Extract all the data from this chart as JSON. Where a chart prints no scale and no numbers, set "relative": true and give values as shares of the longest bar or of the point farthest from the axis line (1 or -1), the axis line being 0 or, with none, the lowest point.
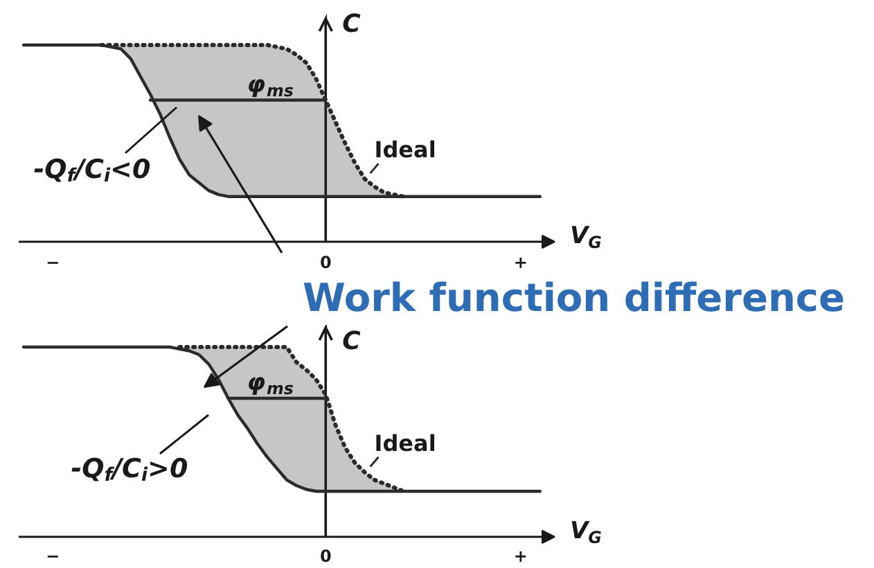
{
  "chart_data": [
    {
      "type": "line",
      "relative": true,
      "xlabel": "V$_{G}$",
      "ylabel": "C",
      "tick_labels": "x",
      "categories": [
        null,
        null,
        null,
        "−",
        null,
        null,
        null,
        null,
        null,
        null,
        null,
        null,
        null,
        null,
        null,
        null,
        null,
        null,
        null,
        null,
        null,
        null,
        null,
        null,
        null,
        null,
        null,
        null,
        null,
        null,
        null,
        "0",
        null,
        null,
        null,
        null,
        null,
        null,
        null,
        null,
        null,
        null,
        null,
        null,
        null,
        null,
        null,
        null,
        null,
        null,
        null,
        "+",
        null,
        null,
        null
      ],
      "series": [
        {
          "color": "#2b2b2b",
          "values": [
            1,
            1,
            1,
            1,
            1,
            1,
            1,
            1,
            1,
            0.99,
            0.98,
            0.93,
            0.84,
            0.75,
            0.65,
            0.53,
            0.42,
            0.34,
            0.3,
            0.26,
            0.24,
            0.23,
            0.23,
            0.23,
            0.23,
            0.23,
            0.23,
            0.23,
            0.23,
            0.23,
            0.23,
            0.23,
            0.23,
            0.23,
            0.23,
            0.23,
            0.23,
            0.23,
            0.23,
            0.23,
            0.23,
            0.23,
            0.23,
            0.23,
            0.23,
            0.23,
            0.23,
            0.23,
            0.23,
            0.23,
            0.23,
            0.23,
            0.23,
            0.23,
            null
          ]
        },
        {
          "name": "Ideal",
          "color": "#2b2b2b",
          "line_style": "dotted",
          "values": [
            null,
            null,
            null,
            null,
            null,
            null,
            null,
            null,
            1,
            1,
            1,
            1,
            1,
            1,
            1,
            1,
            1,
            1,
            1,
            1,
            1,
            1,
            1,
            1,
            1,
            1,
            0.99,
            0.98,
            0.95,
            0.91,
            0.83,
            0.72,
            0.61,
            0.5,
            0.4,
            0.32,
            0.28,
            0.25,
            0.24,
            0.23,
            null,
            null,
            null,
            null,
            null,
            null,
            null,
            null,
            null,
            null,
            null,
            null,
            null,
            null,
            null
          ],
          "lower": [
            null,
            null,
            null,
            null,
            null,
            null,
            null,
            null,
            1,
            0.99,
            0.98,
            0.93,
            0.84,
            0.75,
            0.65,
            0.53,
            0.42,
            0.34,
            0.3,
            0.26,
            0.24,
            0.23,
            0.23,
            0.23,
            0.23,
            0.23,
            0.23,
            0.23,
            0.23,
            0.23,
            0.23,
            0.23,
            0.23,
            0.23,
            0.23,
            0.23,
            0.23,
            0.23,
            0.23,
            0.23,
            null,
            null,
            null,
            null,
            null,
            null,
            null,
            null,
            null,
            null,
            null,
            null,
            null,
            null,
            null
          ],
          "upper": [
            null,
            null,
            null,
            null,
            null,
            null,
            null,
            null,
            1,
            1,
            1,
            1,
            1,
            1,
            1,
            1,
            1,
            1,
            1,
            1,
            1,
            1,
            1,
            1,
            1,
            1,
            0.99,
            0.98,
            0.95,
            0.91,
            0.83,
            0.72,
            0.61,
            0.5,
            0.4,
            0.32,
            0.28,
            0.25,
            0.24,
            0.23,
            null,
            null,
            null,
            null,
            null,
            null,
            null,
            null,
            null,
            null,
            null,
            null,
            null,
            null,
            null
          ]
        },
        {
          "name": "φ$_{ms}$",
          "color": "#2b2b2b",
          "values": [
            null,
            null,
            null,
            null,
            null,
            null,
            null,
            null,
            null,
            null,
            null,
            null,
            null,
            0.72,
            0.72,
            0.72,
            0.72,
            0.72,
            0.72,
            0.72,
            0.72,
            0.72,
            0.72,
            0.72,
            0.72,
            0.72,
            0.72,
            0.72,
            0.72,
            0.72,
            0.72,
            0.72,
            null,
            null,
            null,
            null,
            null,
            null,
            null,
            null,
            null,
            null,
            null,
            null,
            null,
            null,
            null,
            null,
            null,
            null,
            null,
            null,
            null,
            null,
            null
          ]
        }
      ],
      "annotations": [
        "-Q$_{f}$/C$_{i}$<0",
        "Work function difference"
      ]
    },
    {
      "type": "line",
      "relative": true,
      "xlabel": "V$_{G}$",
      "ylabel": "C",
      "tick_labels": "x",
      "categories": [
        null,
        null,
        null,
        "−",
        null,
        null,
        null,
        null,
        null,
        null,
        null,
        null,
        null,
        null,
        null,
        null,
        null,
        null,
        null,
        null,
        null,
        null,
        null,
        null,
        null,
        null,
        null,
        null,
        null,
        null,
        null,
        "0",
        null,
        null,
        null,
        null,
        null,
        null,
        null,
        null,
        null,
        null,
        null,
        null,
        null,
        null,
        null,
        null,
        null,
        null,
        null,
        "+",
        null,
        null,
        null
      ],
      "series": [
        {
          "color": "#2b2b2b",
          "values": [
            1,
            1,
            1,
            1,
            1,
            1,
            1,
            1,
            1,
            1,
            1,
            1,
            1,
            1,
            1,
            1,
            0.99,
            0.98,
            0.96,
            0.91,
            0.83,
            0.73,
            0.64,
            0.57,
            0.49,
            0.42,
            0.36,
            0.3,
            0.27,
            0.25,
            0.24,
            0.24,
            0.24,
            0.24,
            0.24,
            0.24,
            0.24,
            0.24,
            0.24,
            0.24,
            0.24,
            0.24,
            0.24,
            0.24,
            0.24,
            0.24,
            0.24,
            0.24,
            0.24,
            0.24,
            0.24,
            0.24,
            0.24,
            0.24,
            null
          ]
        },
        {
          "name": "Ideal",
          "color": "#2b2b2b",
          "line_style": "dotted",
          "values": [
            null,
            null,
            null,
            null,
            null,
            null,
            null,
            null,
            null,
            null,
            null,
            null,
            null,
            null,
            null,
            null,
            1,
            1,
            1,
            1,
            1,
            1,
            1,
            1,
            1,
            1,
            1,
            1,
            0.92,
            0.88,
            0.83,
            0.75,
            0.59,
            0.47,
            0.39,
            0.34,
            0.3,
            0.28,
            0.26,
            0.24,
            null,
            null,
            null,
            null,
            null,
            null,
            null,
            null,
            null,
            null,
            null,
            null,
            null,
            null,
            null
          ],
          "lower": [
            null,
            null,
            null,
            null,
            null,
            null,
            null,
            null,
            null,
            null,
            null,
            null,
            null,
            null,
            null,
            null,
            0.99,
            0.98,
            0.96,
            0.91,
            0.83,
            0.73,
            0.64,
            0.57,
            0.49,
            0.42,
            0.36,
            0.3,
            0.27,
            0.25,
            0.24,
            0.24,
            0.24,
            0.24,
            0.24,
            0.24,
            0.24,
            0.24,
            0.24,
            0.24,
            null,
            null,
            null,
            null,
            null,
            null,
            null,
            null,
            null,
            null,
            null,
            null,
            null,
            null,
            null
          ],
          "upper": [
            null,
            null,
            null,
            null,
            null,
            null,
            null,
            null,
            null,
            null,
            null,
            null,
            null,
            null,
            null,
            null,
            1,
            1,
            1,
            1,
            1,
            1,
            1,
            1,
            1,
            1,
            1,
            1,
            0.92,
            0.88,
            0.83,
            0.75,
            0.59,
            0.47,
            0.39,
            0.34,
            0.3,
            0.28,
            0.26,
            0.24,
            null,
            null,
            null,
            null,
            null,
            null,
            null,
            null,
            null,
            null,
            null,
            null,
            null,
            null,
            null
          ]
        },
        {
          "name": "φ$_{ms}$",
          "color": "#2b2b2b",
          "values": [
            null,
            null,
            null,
            null,
            null,
            null,
            null,
            null,
            null,
            null,
            null,
            null,
            null,
            null,
            null,
            null,
            null,
            null,
            null,
            null,
            null,
            0.73,
            0.73,
            0.73,
            0.73,
            0.73,
            0.73,
            0.73,
            0.73,
            0.73,
            0.73,
            0.73,
            null,
            null,
            null,
            null,
            null,
            null,
            null,
            null,
            null,
            null,
            null,
            null,
            null,
            null,
            null,
            null,
            null,
            null,
            null,
            null,
            null,
            null,
            null
          ]
        }
      ],
      "annotations": [
        "-Q$_{f}$/C$_{i}$>0"
      ]
    }
  ]
}
